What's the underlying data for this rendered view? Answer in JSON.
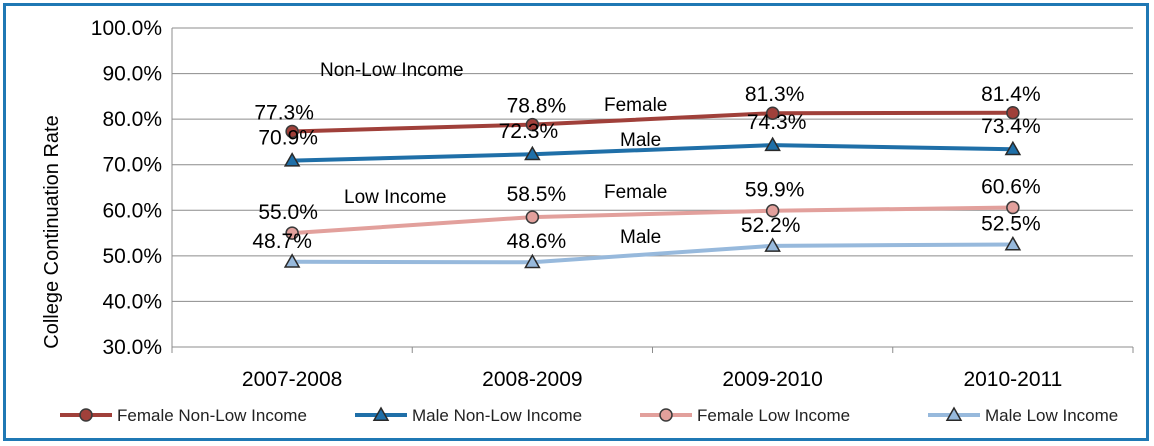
{
  "chart_data": {
    "type": "line",
    "ylabel": "College Continuation Rate",
    "xlabel": "",
    "ylim": [
      30,
      100
    ],
    "yticks": [
      "30.0%",
      "40.0%",
      "50.0%",
      "60.0%",
      "70.0%",
      "80.0%",
      "90.0%",
      "100.0%"
    ],
    "categories": [
      "2007-2008",
      "2008-2009",
      "2009-2010",
      "2010-2011"
    ],
    "grid": true,
    "legend_position": "bottom",
    "series": [
      {
        "name": "Female Non-Low Income",
        "values": [
          77.3,
          78.8,
          81.3,
          81.4
        ],
        "labels": [
          "77.3%",
          "78.8%",
          "81.3%",
          "81.4%"
        ],
        "color": "#a0403a",
        "marker": "circle"
      },
      {
        "name": "Male Non-Low Income",
        "values": [
          70.9,
          72.3,
          74.3,
          73.4
        ],
        "labels": [
          "70.9%",
          "72.3%",
          "74.3%",
          "73.4%"
        ],
        "color": "#1f6fa8",
        "marker": "triangle"
      },
      {
        "name": "Female Low Income",
        "values": [
          55.0,
          58.5,
          59.9,
          60.6
        ],
        "labels": [
          "55.0%",
          "58.5%",
          "59.9%",
          "60.6%"
        ],
        "color": "#e2a09c",
        "marker": "circle"
      },
      {
        "name": "Male Low Income",
        "values": [
          48.7,
          48.6,
          52.2,
          52.5
        ],
        "labels": [
          "48.7%",
          "48.6%",
          "52.2%",
          "52.5%"
        ],
        "color": "#97b9dc",
        "marker": "triangle"
      }
    ],
    "annotations": [
      "Non-Low Income",
      "Female",
      "Male",
      "Low Income",
      "Female",
      "Male"
    ]
  }
}
